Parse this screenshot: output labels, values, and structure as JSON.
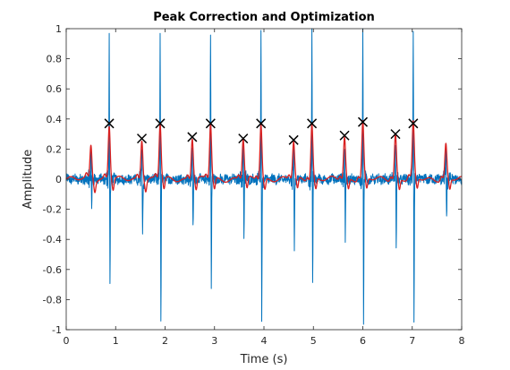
{
  "chart_data": {
    "type": "line",
    "title": "Peak Correction and Optimization",
    "xlabel": "Time (s)",
    "ylabel": "Amplitude",
    "xlim": [
      0,
      8
    ],
    "ylim": [
      -1,
      1
    ],
    "xticks": [
      0,
      1,
      2,
      3,
      4,
      5,
      6,
      7,
      8
    ],
    "yticks": [
      -1,
      -0.8,
      -0.6,
      -0.4,
      -0.2,
      0,
      0.2,
      0.4,
      0.6,
      0.8,
      1
    ],
    "grid": false,
    "legend": "none",
    "colors": {
      "signal": "#0072BD",
      "envelope": "#D92020",
      "peaks": "#000000",
      "axes": "#262626"
    },
    "series": [
      {
        "style": "noisy-signal",
        "color": "#0072BD",
        "baseline_noise": 0.03,
        "events": [
          {
            "t": 0.5,
            "pos": 0.22,
            "neg": -0.16
          },
          {
            "t": 0.87,
            "pos": 0.95,
            "neg": -0.72
          },
          {
            "t": 1.53,
            "pos": 0.21,
            "neg": -0.36
          },
          {
            "t": 1.9,
            "pos": 0.97,
            "neg": -0.96
          },
          {
            "t": 2.55,
            "pos": 0.22,
            "neg": -0.38
          },
          {
            "t": 2.92,
            "pos": 1.0,
            "neg": -0.74
          },
          {
            "t": 3.58,
            "pos": 0.24,
            "neg": -0.35
          },
          {
            "t": 3.94,
            "pos": 1.0,
            "neg": -0.94
          },
          {
            "t": 4.6,
            "pos": 0.22,
            "neg": -0.42
          },
          {
            "t": 4.97,
            "pos": 0.98,
            "neg": -0.74
          },
          {
            "t": 5.63,
            "pos": 0.23,
            "neg": -0.37
          },
          {
            "t": 6.0,
            "pos": 1.0,
            "neg": -0.96
          },
          {
            "t": 6.66,
            "pos": 0.23,
            "neg": -0.4
          },
          {
            "t": 7.02,
            "pos": 0.98,
            "neg": -0.94
          },
          {
            "t": 7.68,
            "pos": 0.23,
            "neg": -0.3
          }
        ]
      },
      {
        "style": "smoothed-envelope",
        "color": "#D92020",
        "events": [
          {
            "t": 0.5,
            "amp": 0.23
          },
          {
            "t": 0.87,
            "amp": 0.36
          },
          {
            "t": 1.53,
            "amp": 0.27
          },
          {
            "t": 1.9,
            "amp": 0.37
          },
          {
            "t": 2.55,
            "amp": 0.28
          },
          {
            "t": 2.92,
            "amp": 0.37
          },
          {
            "t": 3.58,
            "amp": 0.27
          },
          {
            "t": 3.94,
            "amp": 0.37
          },
          {
            "t": 4.6,
            "amp": 0.25
          },
          {
            "t": 4.97,
            "amp": 0.37
          },
          {
            "t": 5.63,
            "amp": 0.28
          },
          {
            "t": 6.0,
            "amp": 0.38
          },
          {
            "t": 6.66,
            "amp": 0.3
          },
          {
            "t": 7.02,
            "amp": 0.37
          },
          {
            "t": 7.68,
            "amp": 0.23
          }
        ]
      }
    ],
    "peaks": {
      "marker": "x",
      "color": "#000000",
      "x": [
        0.87,
        1.53,
        1.9,
        2.55,
        2.92,
        3.58,
        3.94,
        4.6,
        4.97,
        5.63,
        6.0,
        6.66,
        7.02
      ],
      "y": [
        0.37,
        0.27,
        0.37,
        0.28,
        0.37,
        0.27,
        0.37,
        0.26,
        0.37,
        0.29,
        0.38,
        0.3,
        0.37
      ]
    }
  }
}
